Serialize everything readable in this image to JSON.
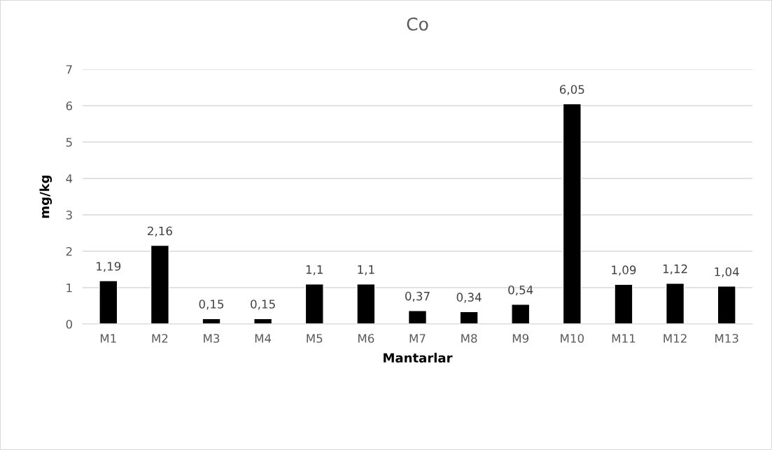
{
  "chart_data": {
    "type": "bar",
    "title": "Co",
    "xlabel": "Mantarlar",
    "ylabel": "mg/kg",
    "categories": [
      "M1",
      "M2",
      "M3",
      "M4",
      "M5",
      "M6",
      "M7",
      "M8",
      "M9",
      "M10",
      "M11",
      "M12",
      "M13"
    ],
    "values": [
      1.19,
      2.16,
      0.15,
      0.15,
      1.1,
      1.1,
      0.37,
      0.34,
      0.54,
      6.05,
      1.09,
      1.12,
      1.04
    ],
    "value_labels": [
      "1,19",
      "2,16",
      "0,15",
      "0,15",
      "1,1",
      "1,1",
      "0,37",
      "0,34",
      "0,54",
      "6,05",
      "1,09",
      "1,12",
      "1,04"
    ],
    "color": "#000000",
    "ylim": [
      0,
      7
    ],
    "yticks": [
      0,
      1,
      2,
      3,
      4,
      5,
      6,
      7
    ],
    "grid": "y",
    "legend": false
  }
}
